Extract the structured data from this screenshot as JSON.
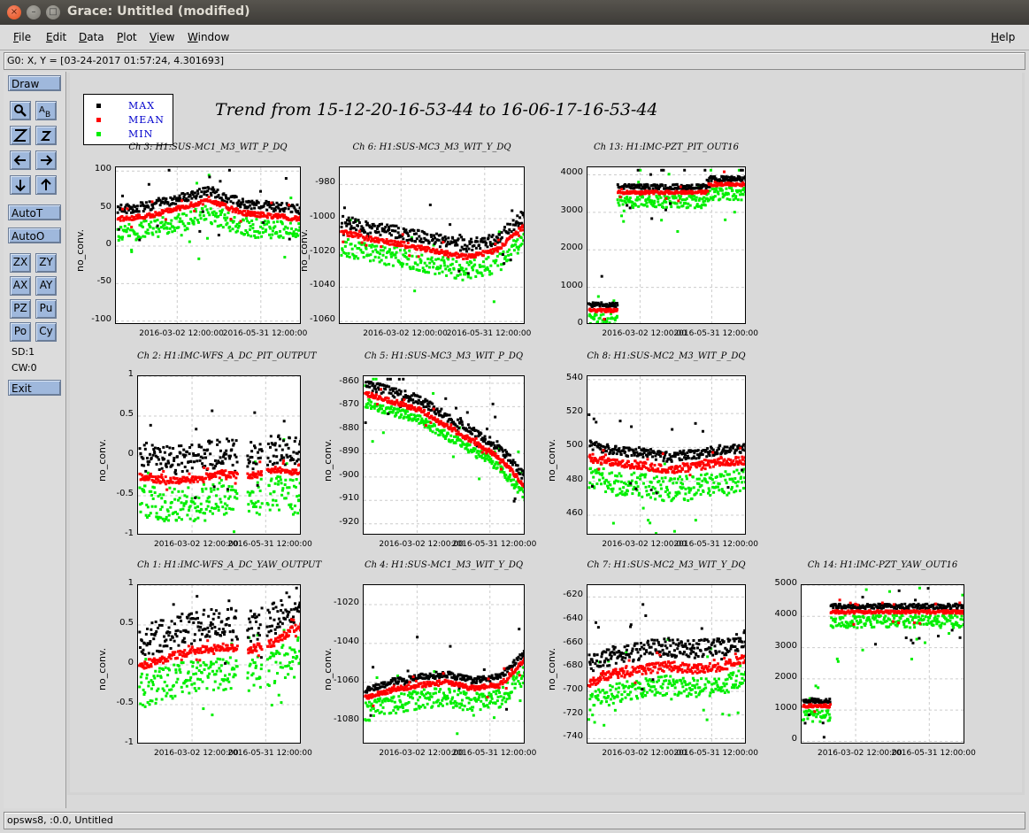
{
  "window": {
    "title": "Grace: Untitled (modified)",
    "close_glyph": "×",
    "min_glyph": "–",
    "max_glyph": "□"
  },
  "menu": {
    "items": [
      "File",
      "Edit",
      "Data",
      "Plot",
      "View",
      "Window"
    ],
    "help": "Help"
  },
  "locator": "G0: X, Y = [03-24-2017 01:57:24, 4.301693]",
  "toolbar": {
    "draw": "Draw",
    "zoom_icons": [
      "zoom-icon",
      "autoscale-text-icon",
      "zoom-big-z-icon",
      "zoom-small-z-icon",
      "arrow-left-icon",
      "arrow-right-icon",
      "arrow-down-icon",
      "arrow-up-icon"
    ],
    "autot": "AutoT",
    "autoo": "AutoO",
    "pairs": [
      [
        "ZX",
        "ZY"
      ],
      [
        "AX",
        "AY"
      ],
      [
        "PZ",
        "Pu"
      ],
      [
        "Po",
        "Cy"
      ]
    ],
    "sd": "SD:1",
    "cw": "CW:0",
    "exit": "Exit"
  },
  "legend": {
    "entries": [
      {
        "label": "MAX",
        "color": "#000000"
      },
      {
        "label": "MEAN",
        "color": "#ff0000"
      },
      {
        "label": "MIN",
        "color": "#00ee00"
      }
    ]
  },
  "main_title": "Trend from 15-12-20-16-53-44 to 16-06-17-16-53-44",
  "chart_data": [
    {
      "type": "scatter",
      "title": "Ch 3: H1:SUS-MC1_M3_WIT_P_DQ",
      "ylabel": "no_conv.",
      "ylim": [
        -105,
        105
      ],
      "yticks": [
        "100",
        "50",
        "0",
        "-50",
        "-100"
      ],
      "yvals": [
        100,
        50,
        0,
        -50,
        -100
      ],
      "xticks": [
        "2016-03-02 12:00:00",
        "2016-05-31 12:00:00"
      ]
    },
    {
      "type": "scatter",
      "title": "Ch 6: H1:SUS-MC3_M3_WIT_Y_DQ",
      "ylabel": "no_conv.",
      "ylim": [
        -1062,
        -970
      ],
      "yticks": [
        "-980",
        "-1000",
        "-1020",
        "-1040",
        "-1060"
      ],
      "yvals": [
        -980,
        -1000,
        -1020,
        -1040,
        -1060
      ],
      "xticks": [
        "2016-03-02 12:00:00",
        "2016-05-31 12:00:00"
      ]
    },
    {
      "type": "scatter",
      "title": "Ch 13: H1:IMC-PZT_PIT_OUT16",
      "ylabel": "",
      "ylim": [
        0,
        4200
      ],
      "yticks": [
        "4000",
        "3000",
        "2000",
        "1000",
        "0"
      ],
      "yvals": [
        4000,
        3000,
        2000,
        1000,
        0
      ],
      "xticks": [
        "2016-03-02 12:00:00",
        "2016-05-31 12:00:00"
      ]
    },
    {
      "type": "scatter",
      "title": "Ch 2: H1:IMC-WFS_A_DC_PIT_OUTPUT",
      "ylabel": "no_conv.",
      "ylim": [
        -1,
        1
      ],
      "yticks": [
        "1",
        "0.5",
        "0",
        "-0.5",
        "-1"
      ],
      "yvals": [
        1,
        0.5,
        0,
        -0.5,
        -1
      ],
      "xticks": [
        "2016-03-02 12:00:00",
        "2016-05-31 12:00:00"
      ]
    },
    {
      "type": "scatter",
      "title": "Ch 5: H1:SUS-MC3_M3_WIT_P_DQ",
      "ylabel": "no_conv.",
      "ylim": [
        -925,
        -857
      ],
      "yticks": [
        "-860",
        "-870",
        "-880",
        "-890",
        "-900",
        "-910",
        "-920"
      ],
      "yvals": [
        -860,
        -870,
        -880,
        -890,
        -900,
        -910,
        -920
      ],
      "xticks": [
        "2016-03-02 12:00:00",
        "2016-05-31 12:00:00"
      ]
    },
    {
      "type": "scatter",
      "title": "Ch 8: H1:SUS-MC2_M3_WIT_P_DQ",
      "ylabel": "no_conv.",
      "ylim": [
        448,
        542
      ],
      "yticks": [
        "540",
        "520",
        "500",
        "480",
        "460"
      ],
      "yvals": [
        540,
        520,
        500,
        480,
        460
      ],
      "xticks": [
        "2016-03-02 12:00:00",
        "2016-05-31 12:00:00"
      ]
    },
    {
      "type": "scatter",
      "title": "Ch 1: H1:IMC-WFS_A_DC_YAW_OUTPUT",
      "ylabel": "no_conv.",
      "ylim": [
        -1,
        1
      ],
      "yticks": [
        "1",
        "0.5",
        "0",
        "-0.5",
        "-1"
      ],
      "yvals": [
        1,
        0.5,
        0,
        -0.5,
        -1
      ],
      "xticks": [
        "2016-03-02 12:00:00",
        "2016-05-31 12:00:00"
      ]
    },
    {
      "type": "scatter",
      "title": "Ch 4: H1:SUS-MC1_M3_WIT_Y_DQ",
      "ylabel": "no_conv.",
      "ylim": [
        -1092,
        -1010
      ],
      "yticks": [
        "-1020",
        "-1040",
        "-1060",
        "-1080"
      ],
      "yvals": [
        -1020,
        -1040,
        -1060,
        -1080
      ],
      "xticks": [
        "2016-03-02 12:00:00",
        "2016-05-31 12:00:00"
      ]
    },
    {
      "type": "scatter",
      "title": "Ch 7: H1:SUS-MC2_M3_WIT_Y_DQ",
      "ylabel": "no_conv.",
      "ylim": [
        -745,
        -610
      ],
      "yticks": [
        "-620",
        "-640",
        "-660",
        "-680",
        "-700",
        "-720",
        "-740"
      ],
      "yvals": [
        -620,
        -640,
        -660,
        -680,
        -700,
        -720,
        -740
      ],
      "xticks": [
        "2016-03-02 12:00:00",
        "2016-05-31 12:00:00"
      ]
    },
    {
      "type": "scatter",
      "title": "Ch 14: H1:IMC-PZT_YAW_OUT16",
      "ylabel": "",
      "ylim": [
        -100,
        5000
      ],
      "yticks": [
        "5000",
        "4000",
        "3000",
        "2000",
        "1000",
        "0"
      ],
      "yvals": [
        5000,
        4000,
        3000,
        2000,
        1000,
        0
      ],
      "xticks": [
        "2016-03-02 12:00:00",
        "2016-05-31 12:00:00"
      ]
    }
  ],
  "status": "opsws8, :0.0, Untitled"
}
